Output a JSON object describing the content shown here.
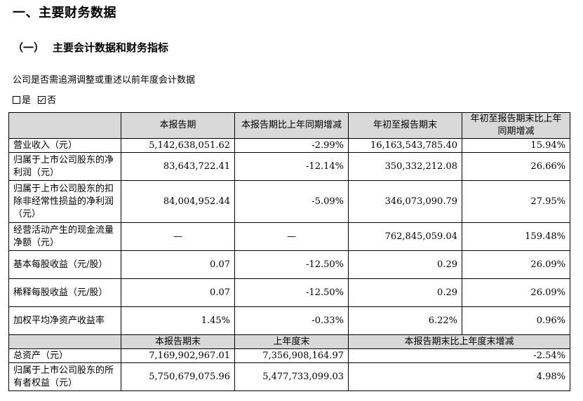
{
  "section_title": "一、主要财务数据",
  "subsection": {
    "num": "（一）",
    "title": "主要会计数据和财务指标"
  },
  "restate_question": "公司是否需追溯调整或重述以前年度会计数据",
  "restate_options": [
    {
      "label": "是",
      "checked": false
    },
    {
      "label": "否",
      "checked": true
    }
  ],
  "table": {
    "headers": [
      "",
      "本报告期",
      "本报告期比上年同期增减",
      "年初至报告期末",
      "年初至报告期末比上年同期增减"
    ],
    "rows": [
      {
        "label": "营业收入（元）",
        "current": "5,142,638,051.62",
        "yoy": "-2.99%",
        "ytd": "16,163,543,785.40",
        "ytd_yoy": "15.94%"
      },
      {
        "label": "归属于上市公司股东的净利润（元）",
        "current": "83,643,722.41",
        "yoy": "-12.14%",
        "ytd": "350,332,212.08",
        "ytd_yoy": "26.66%"
      },
      {
        "label": "归属于上市公司股东的扣除非经常性损益的净利润（元）",
        "current": "84,004,952.44",
        "yoy": "-5.09%",
        "ytd": "346,073,090.79",
        "ytd_yoy": "27.95%"
      },
      {
        "label": "经营活动产生的现金流量净额（元）",
        "current": "—",
        "yoy": "—",
        "ytd": "762,845,059.04",
        "ytd_yoy": "159.48%"
      },
      {
        "label": "基本每股收益（元/股）",
        "current": "0.07",
        "yoy": "-12.50%",
        "ytd": "0.29",
        "ytd_yoy": "26.09%"
      },
      {
        "label": "稀释每股收益（元/股）",
        "current": "0.07",
        "yoy": "-12.50%",
        "ytd": "0.29",
        "ytd_yoy": "26.09%"
      },
      {
        "label": "加权平均净资产收益率",
        "current": "1.45%",
        "yoy": "-0.33%",
        "ytd": "6.22%",
        "ytd_yoy": "0.96%"
      }
    ],
    "headers2": [
      "",
      "本报告期末",
      "上年度末",
      "本报告期末比上年度末增减"
    ],
    "rows2": [
      {
        "label": "总资产（元）",
        "period_end": "7,169,902,967.01",
        "prior_year_end": "7,356,908,164.97",
        "change": "-2.54%"
      },
      {
        "label": "归属于上市公司股东的所有者权益（元）",
        "period_end": "5,750,679,075.96",
        "prior_year_end": "5,477,733,099.03",
        "change": "4.98%"
      }
    ]
  }
}
